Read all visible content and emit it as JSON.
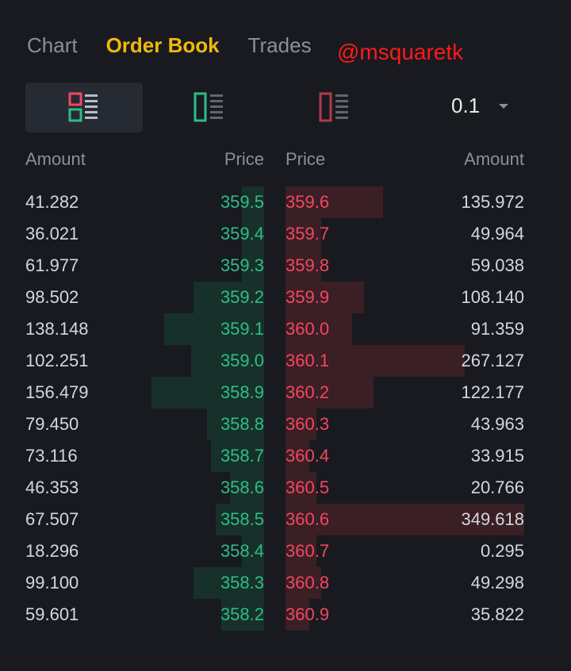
{
  "tabs": [
    {
      "label": "Chart",
      "active": false
    },
    {
      "label": "Order Book",
      "active": true
    },
    {
      "label": "Trades",
      "active": false
    }
  ],
  "watermark": "@msquaretk",
  "view_modes": [
    {
      "name": "both-sides",
      "icon": "orderbook-both-icon",
      "active": true
    },
    {
      "name": "bids-only",
      "icon": "orderbook-bids-icon",
      "active": false
    },
    {
      "name": "asks-only",
      "icon": "orderbook-asks-icon",
      "active": false
    }
  ],
  "precision": {
    "value": "0.1",
    "icon": "caret-down-icon"
  },
  "headers": {
    "bid_amount": "Amount",
    "bid_price": "Price",
    "ask_price": "Price",
    "ask_amount": "Amount"
  },
  "colors": {
    "accent": "#f0b90b",
    "bid": "#2ebd85",
    "ask": "#f6465d",
    "bid_depth": "#17302a",
    "ask_depth": "#3a1f25",
    "background": "#181a20"
  },
  "rows": [
    {
      "bid_amount": "41.282",
      "bid_price": "359.5",
      "ask_price": "359.6",
      "ask_amount": "135.972",
      "bid_depth": 0.2,
      "ask_depth": 0.41
    },
    {
      "bid_amount": "36.021",
      "bid_price": "359.4",
      "ask_price": "359.7",
      "ask_amount": "49.964",
      "bid_depth": 0.2,
      "ask_depth": 0.15
    },
    {
      "bid_amount": "61.977",
      "bid_price": "359.3",
      "ask_price": "359.8",
      "ask_amount": "59.038",
      "bid_depth": 0.2,
      "ask_depth": 0.15
    },
    {
      "bid_amount": "98.502",
      "bid_price": "359.2",
      "ask_price": "359.9",
      "ask_amount": "108.140",
      "bid_depth": 0.63,
      "ask_depth": 0.33
    },
    {
      "bid_amount": "138.148",
      "bid_price": "359.1",
      "ask_price": "360.0",
      "ask_amount": "91.359",
      "bid_depth": 0.89,
      "ask_depth": 0.28
    },
    {
      "bid_amount": "102.251",
      "bid_price": "359.0",
      "ask_price": "360.1",
      "ask_amount": "267.127",
      "bid_depth": 0.65,
      "ask_depth": 0.75
    },
    {
      "bid_amount": "156.479",
      "bid_price": "358.9",
      "ask_price": "360.2",
      "ask_amount": "122.177",
      "bid_depth": 1.0,
      "ask_depth": 0.37
    },
    {
      "bid_amount": "79.450",
      "bid_price": "358.8",
      "ask_price": "360.3",
      "ask_amount": "43.963",
      "bid_depth": 0.51,
      "ask_depth": 0.13
    },
    {
      "bid_amount": "73.116",
      "bid_price": "358.7",
      "ask_price": "360.4",
      "ask_amount": "33.915",
      "bid_depth": 0.47,
      "ask_depth": 0.1
    },
    {
      "bid_amount": "46.353",
      "bid_price": "358.6",
      "ask_price": "360.5",
      "ask_amount": "20.766",
      "bid_depth": 0.3,
      "ask_depth": 0.13
    },
    {
      "bid_amount": "67.507",
      "bid_price": "358.5",
      "ask_price": "360.6",
      "ask_amount": "349.618",
      "bid_depth": 0.43,
      "ask_depth": 1.0
    },
    {
      "bid_amount": "18.296",
      "bid_price": "358.4",
      "ask_price": "360.7",
      "ask_amount": "0.295",
      "bid_depth": 0.2,
      "ask_depth": 0.13
    },
    {
      "bid_amount": "99.100",
      "bid_price": "358.3",
      "ask_price": "360.8",
      "ask_amount": "49.298",
      "bid_depth": 0.63,
      "ask_depth": 0.15
    },
    {
      "bid_amount": "59.601",
      "bid_price": "358.2",
      "ask_price": "360.9",
      "ask_amount": "35.822",
      "bid_depth": 0.38,
      "ask_depth": 0.1
    }
  ]
}
